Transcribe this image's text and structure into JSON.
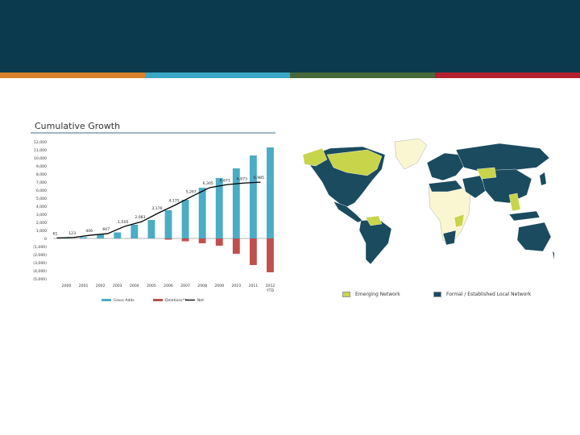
{
  "colors": {
    "header": "#0b3a4f",
    "stripes": [
      "#d9822b",
      "#3aa7c4",
      "#47683a",
      "#b5202e"
    ],
    "gross_adds": "#4bacc6",
    "deletions": "#c0504d",
    "net": "#000000",
    "emerging": "#c8d44a",
    "formal": "#1a4b5e",
    "other_land": "#fbf6d2"
  },
  "chart_data": {
    "type": "bar",
    "title": "Cumulative Growth",
    "categories": [
      "2000",
      "2001",
      "2002",
      "2003",
      "2004",
      "2005",
      "2006",
      "2007",
      "2008",
      "2009",
      "2010",
      "2011",
      "2012 YTD"
    ],
    "series": [
      {
        "name": "Gross Adds",
        "values": [
          61,
          150,
          550,
          750,
          1700,
          2300,
          3500,
          4800,
          6300,
          7500,
          8700,
          10300,
          11300
        ]
      },
      {
        "name": "Deletions**",
        "values": [
          0,
          0,
          0,
          0,
          0,
          0,
          -150,
          -350,
          -600,
          -900,
          -1900,
          -3300,
          -4200
        ]
      },
      {
        "name": "Net",
        "values": [
          61,
          123,
          406,
          607,
          1505,
          2083,
          3176,
          4175,
          5267,
          6305,
          6671,
          6873,
          6985
        ]
      }
    ],
    "net_labels": [
      "61",
      "123",
      "406",
      "607",
      "1,505",
      "2,083",
      "3,176",
      "4,175",
      "5,267",
      "6,305",
      "6,671",
      "6,873",
      "6,985"
    ],
    "y_ticks": [
      "12,000",
      "11,000",
      "10,000",
      "9,000",
      "8,000",
      "7,000",
      "6,000",
      "5,000",
      "4,000",
      "3,000",
      "2,000",
      "1,000",
      "0",
      "(1,000)",
      "(2,000)",
      "(3,000)",
      "(4,000)",
      "(5,000)"
    ],
    "ylim": [
      -5000,
      12000
    ],
    "legend_position": "bottom"
  },
  "map": {
    "legend": [
      {
        "label": "Emerging Network",
        "color": "#c8d44a"
      },
      {
        "label": "Formal / Established Local Network",
        "color": "#1a4b5e"
      }
    ]
  }
}
